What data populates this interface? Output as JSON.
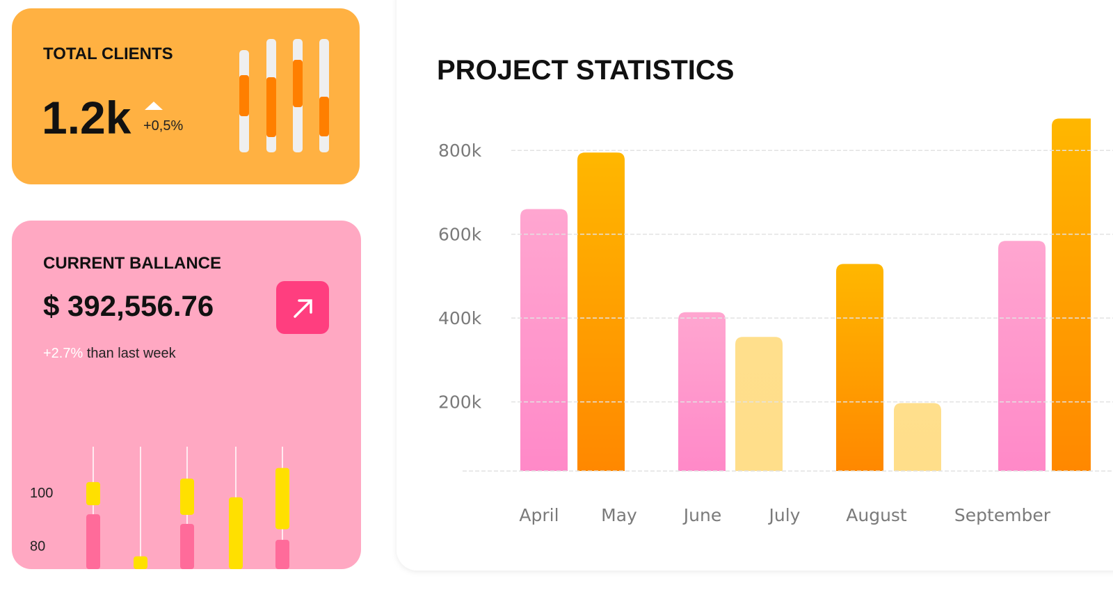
{
  "cards": {
    "clients": {
      "title": "TOTAL CLIENTS",
      "value": "1.2k",
      "change": "+0,5%"
    },
    "balance": {
      "title": "CURRENT BALLANCE",
      "value": "$ 392,556.76",
      "change": "+2.7%",
      "note": "than last week"
    }
  },
  "chart_data": [
    {
      "type": "bar",
      "title": "PROJECT STATISTICS",
      "categories": [
        "April",
        "May",
        "June",
        "July",
        "August",
        null,
        "September",
        null
      ],
      "values": [
        660000,
        795000,
        414000,
        355000,
        529000,
        197000,
        584000,
        876000
      ],
      "colors": [
        "#ff9fcf",
        "#ffb300",
        "#ff9fcf",
        "#ffdf8c",
        "#ffb300",
        "#ffdf8c",
        "#ff9fcf",
        "#ffb300"
      ],
      "ylim": [
        35000,
        880000
      ],
      "yticks": [
        {
          "value": 200000,
          "label": "200k"
        },
        {
          "value": 400000,
          "label": "400k"
        },
        {
          "value": 600000,
          "label": "600k"
        },
        {
          "value": 800000,
          "label": "800k"
        }
      ],
      "grid": true
    },
    {
      "type": "candlestick",
      "ylim": [
        71,
        117
      ],
      "yticks": [
        80,
        100
      ],
      "candles": [
        {
          "high": 117,
          "yellow": [
            95,
            103.7
          ],
          "pink": [
            71,
            91.6
          ]
        },
        {
          "high": 117,
          "yellow": [
            71,
            75.8
          ],
          "pink": null
        },
        {
          "high": 117,
          "yellow": [
            91.4,
            105
          ],
          "pink": [
            71,
            88
          ]
        },
        {
          "high": 117,
          "yellow": [
            71,
            98
          ],
          "pink": null
        },
        {
          "high": 117,
          "yellow": [
            86,
            109
          ],
          "pink": [
            71,
            82
          ]
        }
      ],
      "colors": {
        "yellow": "#ffe000",
        "pink": "#ff6b9a"
      }
    }
  ]
}
